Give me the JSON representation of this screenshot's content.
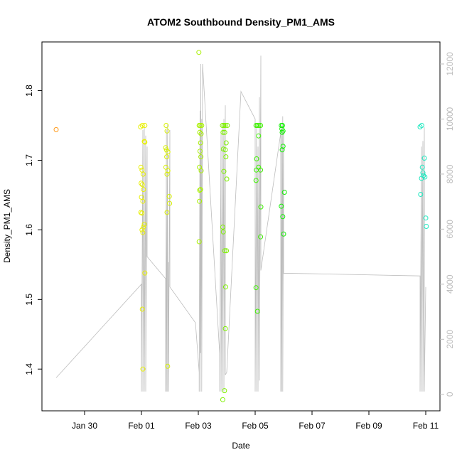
{
  "chart_data": {
    "type": "scatter",
    "title": "ATOM2 Southbound Density_PM1_AMS",
    "xlabel": "Date",
    "ylabel": "Density_PM1_AMS",
    "xlim": [
      -2.5,
      11.5
    ],
    "ylim": [
      1.34,
      1.87
    ],
    "x_ticks": [
      {
        "value": -1,
        "label": "Jan 30"
      },
      {
        "value": 1,
        "label": "Feb 01"
      },
      {
        "value": 3,
        "label": "Feb 03"
      },
      {
        "value": 5,
        "label": "Feb 05"
      },
      {
        "value": 7,
        "label": "Feb 07"
      },
      {
        "value": 9,
        "label": "Feb 09"
      },
      {
        "value": 11,
        "label": "Feb 11"
      }
    ],
    "y_ticks": [
      1.4,
      1.5,
      1.6,
      1.7,
      1.8
    ],
    "secondary_axis": {
      "side": "right",
      "ticks": [
        0,
        2000,
        4000,
        6000,
        8000,
        10000,
        12000
      ],
      "ylim": [
        -600,
        12800
      ],
      "color": "#bdbdbd"
    },
    "grid": false,
    "points": [
      {
        "x": -2.0,
        "y": 1.744,
        "color": "#ff9a1a"
      },
      {
        "x": 0.97,
        "y": 1.748,
        "color": "#e8f000"
      },
      {
        "x": 1.03,
        "y": 1.75,
        "color": "#e8f000"
      },
      {
        "x": 1.12,
        "y": 1.75,
        "color": "#e8f000"
      },
      {
        "x": 1.1,
        "y": 1.727,
        "color": "#e8f000"
      },
      {
        "x": 1.12,
        "y": 1.726,
        "color": "#e8f000"
      },
      {
        "x": 0.98,
        "y": 1.69,
        "color": "#e8f000"
      },
      {
        "x": 1.02,
        "y": 1.686,
        "color": "#e8f000"
      },
      {
        "x": 1.06,
        "y": 1.68,
        "color": "#e8f000"
      },
      {
        "x": 0.99,
        "y": 1.667,
        "color": "#e8f000"
      },
      {
        "x": 1.03,
        "y": 1.665,
        "color": "#e8f000"
      },
      {
        "x": 1.07,
        "y": 1.658,
        "color": "#e8f000"
      },
      {
        "x": 1.0,
        "y": 1.647,
        "color": "#e8f000"
      },
      {
        "x": 1.05,
        "y": 1.641,
        "color": "#e8f000"
      },
      {
        "x": 0.98,
        "y": 1.625,
        "color": "#e8f000"
      },
      {
        "x": 1.02,
        "y": 1.624,
        "color": "#e8f000"
      },
      {
        "x": 1.1,
        "y": 1.608,
        "color": "#e8f000"
      },
      {
        "x": 1.07,
        "y": 1.604,
        "color": "#e8f000"
      },
      {
        "x": 1.02,
        "y": 1.6,
        "color": "#e8f000"
      },
      {
        "x": 1.05,
        "y": 1.596,
        "color": "#e8f000"
      },
      {
        "x": 1.12,
        "y": 1.538,
        "color": "#e8f000"
      },
      {
        "x": 1.03,
        "y": 1.486,
        "color": "#e8f000"
      },
      {
        "x": 1.05,
        "y": 1.4,
        "color": "#e8f000"
      },
      {
        "x": 1.87,
        "y": 1.75,
        "color": "#d8f000"
      },
      {
        "x": 1.9,
        "y": 1.742,
        "color": "#d8f000"
      },
      {
        "x": 1.85,
        "y": 1.718,
        "color": "#d8f000"
      },
      {
        "x": 1.88,
        "y": 1.715,
        "color": "#d8f000"
      },
      {
        "x": 1.93,
        "y": 1.712,
        "color": "#d8f000"
      },
      {
        "x": 1.89,
        "y": 1.705,
        "color": "#d8f000"
      },
      {
        "x": 1.86,
        "y": 1.69,
        "color": "#d8f000"
      },
      {
        "x": 1.93,
        "y": 1.685,
        "color": "#d8f000"
      },
      {
        "x": 1.9,
        "y": 1.68,
        "color": "#d8f000"
      },
      {
        "x": 1.98,
        "y": 1.648,
        "color": "#d8f000"
      },
      {
        "x": 1.99,
        "y": 1.638,
        "color": "#d8f000"
      },
      {
        "x": 1.9,
        "y": 1.625,
        "color": "#d8f000"
      },
      {
        "x": 1.92,
        "y": 1.404,
        "color": "#d8f000"
      },
      {
        "x": 3.02,
        "y": 1.855,
        "color": "#a8f000"
      },
      {
        "x": 3.03,
        "y": 1.75,
        "color": "#a8f000"
      },
      {
        "x": 3.07,
        "y": 1.75,
        "color": "#a8f000"
      },
      {
        "x": 3.12,
        "y": 1.75,
        "color": "#a8f000"
      },
      {
        "x": 3.05,
        "y": 1.74,
        "color": "#a8f000"
      },
      {
        "x": 3.1,
        "y": 1.738,
        "color": "#a8f000"
      },
      {
        "x": 3.08,
        "y": 1.725,
        "color": "#a8f000"
      },
      {
        "x": 3.06,
        "y": 1.713,
        "color": "#a8f000"
      },
      {
        "x": 3.09,
        "y": 1.705,
        "color": "#a8f000"
      },
      {
        "x": 3.04,
        "y": 1.69,
        "color": "#a8f000"
      },
      {
        "x": 3.1,
        "y": 1.685,
        "color": "#a8f000"
      },
      {
        "x": 3.08,
        "y": 1.658,
        "color": "#a8f000"
      },
      {
        "x": 3.05,
        "y": 1.657,
        "color": "#a8f000"
      },
      {
        "x": 3.04,
        "y": 1.641,
        "color": "#a8f000"
      },
      {
        "x": 3.03,
        "y": 1.583,
        "color": "#a8f000"
      },
      {
        "x": 3.85,
        "y": 1.75,
        "color": "#7ef000"
      },
      {
        "x": 3.9,
        "y": 1.75,
        "color": "#7ef000"
      },
      {
        "x": 3.95,
        "y": 1.75,
        "color": "#7ef000"
      },
      {
        "x": 4.02,
        "y": 1.75,
        "color": "#7ef000"
      },
      {
        "x": 3.87,
        "y": 1.74,
        "color": "#7ef000"
      },
      {
        "x": 3.93,
        "y": 1.74,
        "color": "#7ef000"
      },
      {
        "x": 3.98,
        "y": 1.725,
        "color": "#7ef000"
      },
      {
        "x": 3.88,
        "y": 1.716,
        "color": "#7ef000"
      },
      {
        "x": 3.95,
        "y": 1.715,
        "color": "#7ef000"
      },
      {
        "x": 3.97,
        "y": 1.705,
        "color": "#7ef000"
      },
      {
        "x": 3.9,
        "y": 1.684,
        "color": "#7ef000"
      },
      {
        "x": 4.0,
        "y": 1.673,
        "color": "#7ef000"
      },
      {
        "x": 3.86,
        "y": 1.604,
        "color": "#7ef000"
      },
      {
        "x": 3.88,
        "y": 1.597,
        "color": "#7ef000"
      },
      {
        "x": 3.93,
        "y": 1.57,
        "color": "#7ef000"
      },
      {
        "x": 3.99,
        "y": 1.57,
        "color": "#7ef000"
      },
      {
        "x": 3.96,
        "y": 1.518,
        "color": "#7ef000"
      },
      {
        "x": 3.95,
        "y": 1.458,
        "color": "#7ef000"
      },
      {
        "x": 3.92,
        "y": 1.369,
        "color": "#7ef000"
      },
      {
        "x": 3.86,
        "y": 1.356,
        "color": "#7ef000"
      },
      {
        "x": 5.03,
        "y": 1.75,
        "color": "#3ef000"
      },
      {
        "x": 5.08,
        "y": 1.75,
        "color": "#3ef000"
      },
      {
        "x": 5.13,
        "y": 1.75,
        "color": "#3ef000"
      },
      {
        "x": 5.19,
        "y": 1.75,
        "color": "#3ef000"
      },
      {
        "x": 5.12,
        "y": 1.735,
        "color": "#3ef000"
      },
      {
        "x": 5.05,
        "y": 1.702,
        "color": "#3ef000"
      },
      {
        "x": 5.12,
        "y": 1.69,
        "color": "#3ef000"
      },
      {
        "x": 5.04,
        "y": 1.686,
        "color": "#3ef000"
      },
      {
        "x": 5.19,
        "y": 1.686,
        "color": "#3ef000"
      },
      {
        "x": 5.03,
        "y": 1.671,
        "color": "#3ef000"
      },
      {
        "x": 5.2,
        "y": 1.633,
        "color": "#3ef000"
      },
      {
        "x": 5.19,
        "y": 1.59,
        "color": "#3ef000"
      },
      {
        "x": 5.03,
        "y": 1.517,
        "color": "#3ef000"
      },
      {
        "x": 5.08,
        "y": 1.483,
        "color": "#3ef000"
      },
      {
        "x": 5.92,
        "y": 1.75,
        "color": "#10f000"
      },
      {
        "x": 5.96,
        "y": 1.75,
        "color": "#10f000"
      },
      {
        "x": 5.94,
        "y": 1.745,
        "color": "#10f000"
      },
      {
        "x": 5.98,
        "y": 1.742,
        "color": "#10f000"
      },
      {
        "x": 5.95,
        "y": 1.74,
        "color": "#10f000"
      },
      {
        "x": 5.98,
        "y": 1.72,
        "color": "#10f000"
      },
      {
        "x": 5.95,
        "y": 1.715,
        "color": "#10f000"
      },
      {
        "x": 6.03,
        "y": 1.654,
        "color": "#10f000"
      },
      {
        "x": 5.92,
        "y": 1.634,
        "color": "#10f000"
      },
      {
        "x": 5.97,
        "y": 1.619,
        "color": "#10f000"
      },
      {
        "x": 6.0,
        "y": 1.594,
        "color": "#10f000"
      },
      {
        "x": 10.8,
        "y": 1.748,
        "color": "#20e8c0"
      },
      {
        "x": 10.86,
        "y": 1.75,
        "color": "#20e8c0"
      },
      {
        "x": 10.95,
        "y": 1.703,
        "color": "#20e8c0"
      },
      {
        "x": 10.88,
        "y": 1.69,
        "color": "#20e8c0"
      },
      {
        "x": 10.9,
        "y": 1.682,
        "color": "#20e8c0"
      },
      {
        "x": 10.92,
        "y": 1.678,
        "color": "#20e8c0"
      },
      {
        "x": 10.97,
        "y": 1.676,
        "color": "#20e8c0"
      },
      {
        "x": 10.85,
        "y": 1.674,
        "color": "#20e8c0"
      },
      {
        "x": 10.82,
        "y": 1.651,
        "color": "#20e8c0"
      },
      {
        "x": 11.0,
        "y": 1.617,
        "color": "#20e8c0"
      },
      {
        "x": 11.02,
        "y": 1.605,
        "color": "#20e8c0"
      }
    ],
    "line_series": {
      "axis": "right",
      "color": "#bdbdbd",
      "points": [
        [
          -2.0,
          600
        ],
        [
          1.0,
          4000
        ],
        [
          1.0,
          100
        ],
        [
          1.05,
          9600
        ],
        [
          1.05,
          100
        ],
        [
          1.1,
          9800
        ],
        [
          1.1,
          100
        ],
        [
          1.15,
          9400
        ],
        [
          1.15,
          100
        ],
        [
          1.2,
          9000
        ],
        [
          1.2,
          5000
        ],
        [
          1.85,
          4200
        ],
        [
          1.85,
          100
        ],
        [
          1.88,
          9600
        ],
        [
          1.88,
          100
        ],
        [
          1.92,
          9800
        ],
        [
          1.92,
          100
        ],
        [
          1.95,
          4800
        ],
        [
          1.95,
          100
        ],
        [
          2.0,
          9600
        ],
        [
          2.0,
          3900
        ],
        [
          2.9,
          2600
        ],
        [
          3.03,
          800
        ],
        [
          3.03,
          100
        ],
        [
          3.06,
          10300
        ],
        [
          3.06,
          100
        ],
        [
          3.09,
          12000
        ],
        [
          3.09,
          1500
        ],
        [
          3.12,
          10000
        ],
        [
          3.12,
          100
        ],
        [
          3.15,
          12000
        ],
        [
          3.75,
          1500
        ],
        [
          3.75,
          100
        ],
        [
          3.8,
          9500
        ],
        [
          3.8,
          100
        ],
        [
          3.85,
          9700
        ],
        [
          3.85,
          100
        ],
        [
          3.9,
          10000
        ],
        [
          3.9,
          100
        ],
        [
          3.95,
          10500
        ],
        [
          3.95,
          700
        ],
        [
          4.0,
          800
        ],
        [
          4.5,
          11000
        ],
        [
          5.0,
          10000
        ],
        [
          5.0,
          100
        ],
        [
          5.05,
          9800
        ],
        [
          5.05,
          100
        ],
        [
          5.1,
          9000
        ],
        [
          5.1,
          100
        ],
        [
          5.15,
          10800
        ],
        [
          5.15,
          500
        ],
        [
          5.2,
          12300
        ],
        [
          5.2,
          4500
        ],
        [
          5.9,
          9500
        ],
        [
          5.9,
          100
        ],
        [
          5.93,
          9800
        ],
        [
          5.93,
          100
        ],
        [
          5.97,
          10100
        ],
        [
          5.97,
          100
        ],
        [
          6.0,
          9600
        ],
        [
          6.0,
          4400
        ],
        [
          10.8,
          4300
        ],
        [
          10.8,
          100
        ],
        [
          10.85,
          9000
        ],
        [
          10.85,
          100
        ],
        [
          10.9,
          9200
        ],
        [
          10.9,
          100
        ],
        [
          10.95,
          9700
        ],
        [
          10.95,
          100
        ],
        [
          11.0,
          3900
        ]
      ]
    }
  }
}
